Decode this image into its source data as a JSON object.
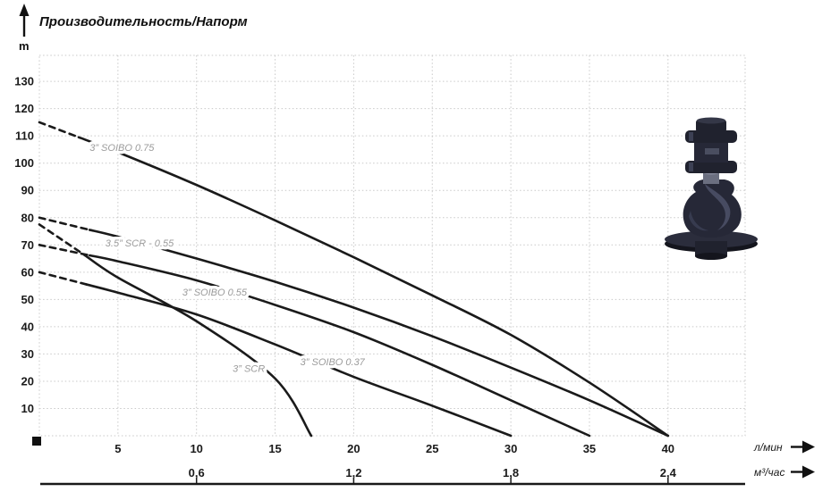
{
  "header": {
    "title": "Производительность/Напорм"
  },
  "chart_data": {
    "type": "line",
    "title": "Производительность/Напорм",
    "y_unit": "m",
    "ylim": [
      0,
      140
    ],
    "xlim_lmin": [
      0,
      45
    ],
    "grid": true,
    "y_ticks": [
      10,
      20,
      30,
      40,
      50,
      60,
      70,
      80,
      90,
      100,
      110,
      120,
      130
    ],
    "x_primary": {
      "unit": "л/мин",
      "ticks": [
        5,
        10,
        15,
        20,
        25,
        30,
        35,
        40
      ]
    },
    "x_secondary": {
      "unit": "м³/час",
      "ticks": [
        {
          "label": "0,6",
          "lmin": 10
        },
        {
          "label": "1,2",
          "lmin": 20
        },
        {
          "label": "1,8",
          "lmin": 30
        },
        {
          "label": "2,4",
          "lmin": 40
        }
      ]
    },
    "series": [
      {
        "name": "3” SOIBO 0.75",
        "dash_until_lmin": 2.5,
        "points_lmin_m": [
          [
            0,
            115
          ],
          [
            5,
            104
          ],
          [
            10,
            92
          ],
          [
            15,
            79
          ],
          [
            20,
            65.5
          ],
          [
            25,
            51.5
          ],
          [
            30,
            37
          ],
          [
            35,
            19.5
          ],
          [
            40,
            0
          ]
        ],
        "label": {
          "text": "3” SOIBO 0.75",
          "lmin": 3.2,
          "m": 104.5
        }
      },
      {
        "name": "3.5” SCR - 0.55",
        "dash_until_lmin": 3.2,
        "points_lmin_m": [
          [
            0,
            80
          ],
          [
            5,
            73
          ],
          [
            10,
            65
          ],
          [
            15,
            56.5
          ],
          [
            20,
            47
          ],
          [
            25,
            36.5
          ],
          [
            30,
            25
          ],
          [
            35,
            13
          ],
          [
            40,
            0
          ]
        ],
        "label": {
          "text": "3.5” SCR - 0.55",
          "lmin": 4.2,
          "m": 69.5
        }
      },
      {
        "name": "3” SOIBO 0.55",
        "dash_until_lmin": 3.2,
        "points_lmin_m": [
          [
            0,
            70
          ],
          [
            5,
            64
          ],
          [
            10,
            57
          ],
          [
            15,
            48
          ],
          [
            20,
            38
          ],
          [
            25,
            26
          ],
          [
            30,
            13
          ],
          [
            35,
            0
          ]
        ],
        "label": {
          "text": "3” SOIBO 0.55",
          "lmin": 9.1,
          "m": 51.5
        }
      },
      {
        "name": "3” SCR",
        "dash_until_lmin": 2.9,
        "points_lmin_m": [
          [
            0,
            77.5
          ],
          [
            5,
            58
          ],
          [
            10,
            42
          ],
          [
            15,
            21
          ],
          [
            17.3,
            0
          ]
        ],
        "label": {
          "text": "3” SCR",
          "lmin": 12.3,
          "m": 23.5
        }
      },
      {
        "name": "3” SOIBO 0.37",
        "dash_until_lmin": 3.0,
        "points_lmin_m": [
          [
            0,
            60
          ],
          [
            5,
            52.5
          ],
          [
            10,
            44.5
          ],
          [
            15,
            33.5
          ],
          [
            20,
            21.6
          ],
          [
            25,
            11
          ],
          [
            30,
            0
          ]
        ],
        "label": {
          "text": "3” SOIBO 0.37",
          "lmin": 16.6,
          "m": 25.8
        }
      }
    ]
  },
  "colors": {
    "curve": "#1a1a1a",
    "grid": "#c9c9c9",
    "curve_label": "#9b9b9b",
    "text": "#1a1a1a",
    "pump_dark": "#1b1d29",
    "pump_mid": "#262837",
    "pump_light": "#4d5168"
  }
}
